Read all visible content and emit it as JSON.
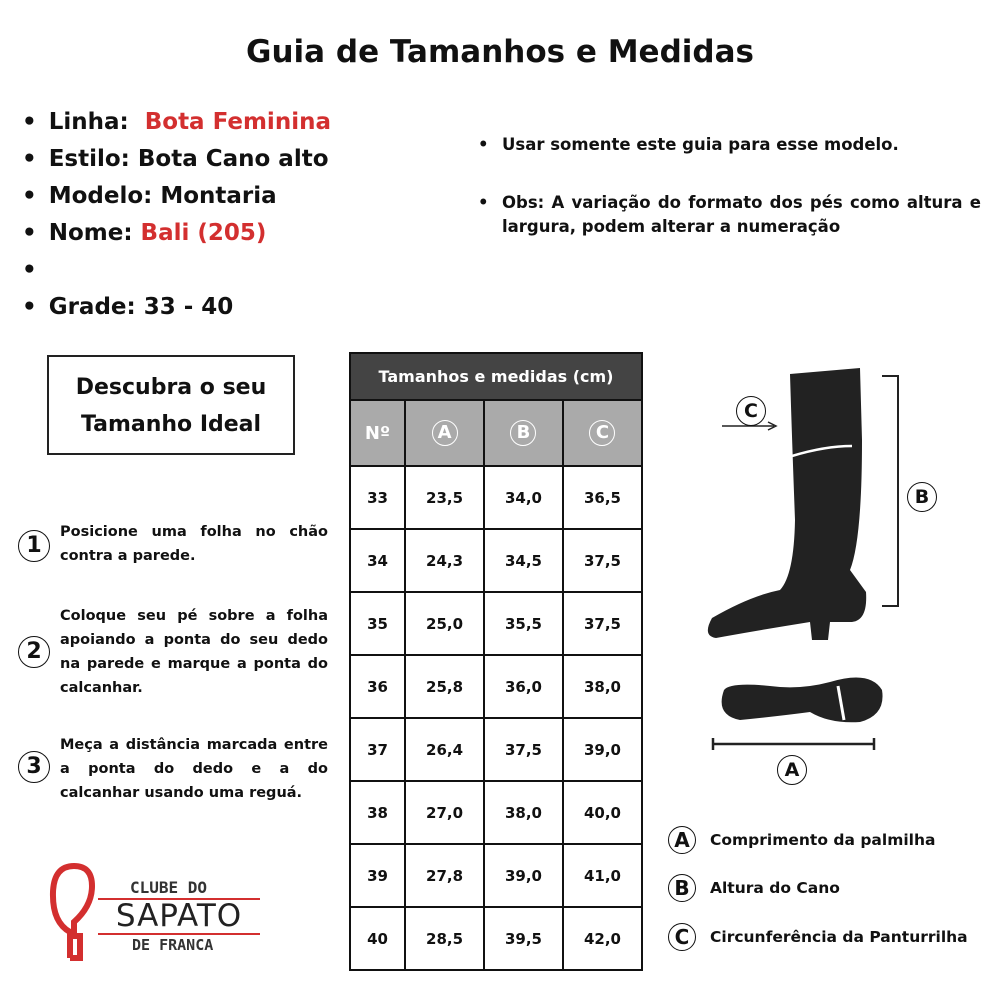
{
  "title": "Guia de Tamanhos e Medidas",
  "info": {
    "linha_label": "Linha:",
    "linha_value": "Bota Feminina",
    "estilo": "Estilo: Bota Cano alto",
    "modelo": "Modelo: Montaria",
    "nome_label": "Nome:",
    "nome_value": "Bali (205)",
    "grade": "Grade: 33 - 40"
  },
  "notes": [
    "Usar somente este guia para esse modelo.",
    "Obs: A variação do formato dos pés como altura e largura, podem alterar a numeração"
  ],
  "discover": [
    "Descubra o seu",
    "Tamanho Ideal"
  ],
  "steps": [
    {
      "num": "1",
      "text": "Posicione  uma folha no chão contra a parede."
    },
    {
      "num": "2",
      "text": "Coloque seu  pé sobre a  folha apoiando a ponta do seu dedo na  parede  e  marque a ponta do calcanhar."
    },
    {
      "num": "3",
      "text": "Meça a distância marcada entre a ponta do dedo e a do calcanhar usando uma reguá."
    }
  ],
  "logo": {
    "line1": "CLUBE DO",
    "line2": "SAPATO",
    "line3": "DE FRANCA"
  },
  "table": {
    "title": "Tamanhos e medidas (cm)",
    "headers": [
      "Nº",
      "A",
      "B",
      "C"
    ],
    "rows": [
      [
        "33",
        "23,5",
        "34,0",
        "36,5"
      ],
      [
        "34",
        "24,3",
        "34,5",
        "37,5"
      ],
      [
        "35",
        "25,0",
        "35,5",
        "37,5"
      ],
      [
        "36",
        "25,8",
        "36,0",
        "38,0"
      ],
      [
        "37",
        "26,4",
        "37,5",
        "39,0"
      ],
      [
        "38",
        "27,0",
        "38,0",
        "40,0"
      ],
      [
        "39",
        "27,8",
        "39,0",
        "41,0"
      ],
      [
        "40",
        "28,5",
        "39,5",
        "42,0"
      ]
    ]
  },
  "diagram": {
    "a": "A",
    "b": "B",
    "c": "C"
  },
  "legend": [
    {
      "key": "A",
      "label": "Comprimento da palmilha"
    },
    {
      "key": "B",
      "label": "Altura do Cano"
    },
    {
      "key": "C",
      "label": "Circunferência da Panturrilha"
    }
  ],
  "colors": {
    "accent": "#d32f2f",
    "table_header": "#444444",
    "table_subheader": "#aaaaaa"
  }
}
